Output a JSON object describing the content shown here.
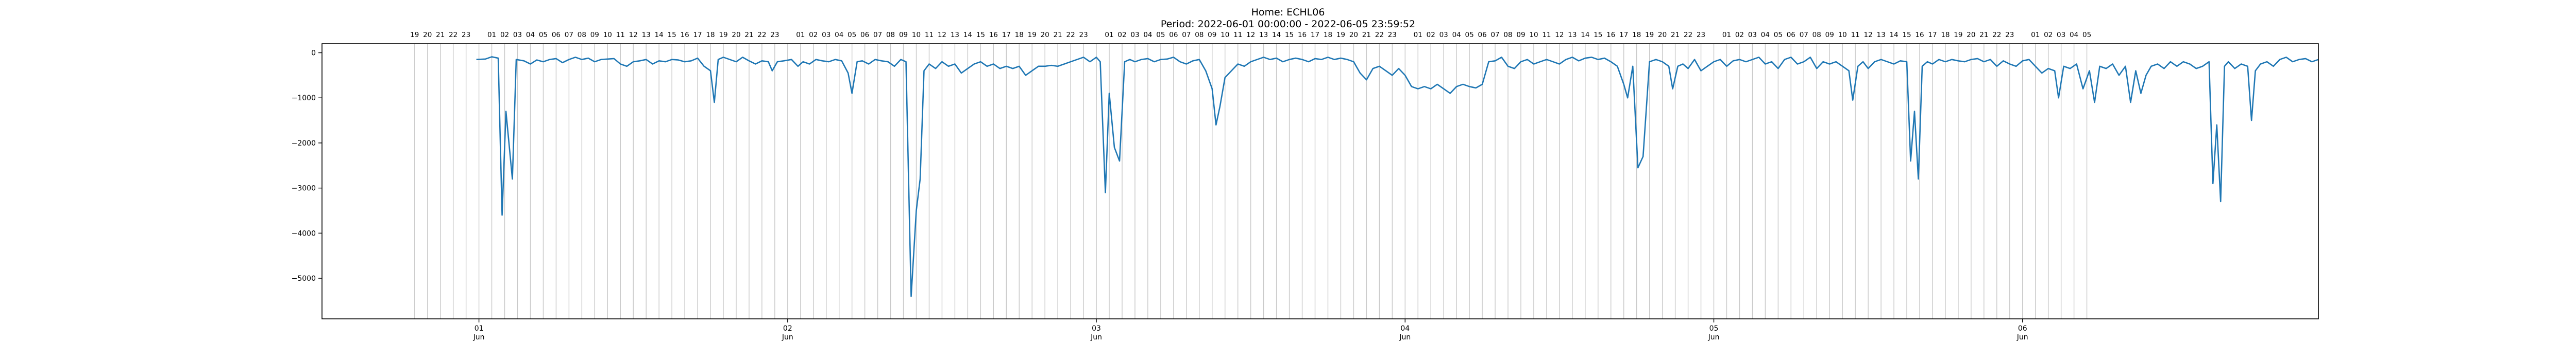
{
  "header": {
    "title_line1": "Home: ECHL06",
    "title_line2": "Period: 2022-06-01 00:00:00 - 2022-06-05 23:59:52"
  },
  "chart_data": {
    "type": "line",
    "title": "Home: ECHL06",
    "subtitle": "Period: 2022-06-01 00:00:00 - 2022-06-05 23:59:52",
    "xlabel": "",
    "ylabel": "",
    "x_range_hours": [
      -12.2,
      143.0
    ],
    "xlim": [
      "2022-05-31T11:48",
      "2022-06-06T23:00"
    ],
    "ylim": [
      -5900,
      200
    ],
    "y_ticks": [
      0,
      -1000,
      -2000,
      -3000,
      -4000,
      -5000
    ],
    "y_tick_labels": [
      "0",
      "−1000",
      "−2000",
      "−3000",
      "−4000",
      "−5000"
    ],
    "date_ticks": [
      {
        "hour": 0,
        "day": "01",
        "month": "Jun"
      },
      {
        "hour": 24,
        "day": "02",
        "month": "Jun"
      },
      {
        "hour": 48,
        "day": "03",
        "month": "Jun"
      },
      {
        "hour": 72,
        "day": "04",
        "month": "Jun"
      },
      {
        "hour": 96,
        "day": "05",
        "month": "Jun"
      },
      {
        "hour": 120,
        "day": "06",
        "month": "Jun"
      }
    ],
    "hour_gridlines": {
      "start_hour": -5,
      "end_hour": 125
    },
    "grid": "vertical hourly lines",
    "series": [
      {
        "color": "#1f77b4",
        "points": [
          [
            -0.2,
            -150
          ],
          [
            0.5,
            -140
          ],
          [
            1.0,
            -90
          ],
          [
            1.5,
            -120
          ],
          [
            1.8,
            -3600
          ],
          [
            2.1,
            -1300
          ],
          [
            2.3,
            -1900
          ],
          [
            2.6,
            -2800
          ],
          [
            2.9,
            -150
          ],
          [
            3.5,
            -180
          ],
          [
            4.0,
            -250
          ],
          [
            4.5,
            -160
          ],
          [
            5.0,
            -200
          ],
          [
            5.5,
            -150
          ],
          [
            6.0,
            -130
          ],
          [
            6.5,
            -220
          ],
          [
            7.0,
            -150
          ],
          [
            7.5,
            -100
          ],
          [
            8.0,
            -150
          ],
          [
            8.5,
            -120
          ],
          [
            9.0,
            -200
          ],
          [
            9.5,
            -150
          ],
          [
            10.0,
            -140
          ],
          [
            10.5,
            -130
          ],
          [
            11.0,
            -250
          ],
          [
            11.5,
            -300
          ],
          [
            12.0,
            -200
          ],
          [
            12.5,
            -180
          ],
          [
            13.0,
            -150
          ],
          [
            13.5,
            -250
          ],
          [
            14.0,
            -180
          ],
          [
            14.5,
            -200
          ],
          [
            15.0,
            -150
          ],
          [
            15.5,
            -160
          ],
          [
            16.0,
            -200
          ],
          [
            16.5,
            -180
          ],
          [
            17.0,
            -120
          ],
          [
            17.5,
            -300
          ],
          [
            18.0,
            -400
          ],
          [
            18.3,
            -1100
          ],
          [
            18.6,
            -150
          ],
          [
            19.0,
            -100
          ],
          [
            19.5,
            -150
          ],
          [
            20.0,
            -200
          ],
          [
            20.5,
            -100
          ],
          [
            21.0,
            -180
          ],
          [
            21.5,
            -250
          ],
          [
            22.0,
            -180
          ],
          [
            22.5,
            -200
          ],
          [
            22.8,
            -400
          ],
          [
            23.2,
            -200
          ],
          [
            23.7,
            -180
          ],
          [
            24.3,
            -150
          ],
          [
            24.8,
            -300
          ],
          [
            25.2,
            -200
          ],
          [
            25.7,
            -250
          ],
          [
            26.2,
            -150
          ],
          [
            26.7,
            -180
          ],
          [
            27.2,
            -200
          ],
          [
            27.7,
            -150
          ],
          [
            28.2,
            -180
          ],
          [
            28.7,
            -450
          ],
          [
            29.0,
            -900
          ],
          [
            29.4,
            -200
          ],
          [
            29.8,
            -180
          ],
          [
            30.3,
            -250
          ],
          [
            30.8,
            -150
          ],
          [
            31.3,
            -180
          ],
          [
            31.8,
            -200
          ],
          [
            32.3,
            -300
          ],
          [
            32.8,
            -150
          ],
          [
            33.2,
            -200
          ],
          [
            33.6,
            -5400
          ],
          [
            34.0,
            -3500
          ],
          [
            34.3,
            -2800
          ],
          [
            34.6,
            -400
          ],
          [
            35.0,
            -250
          ],
          [
            35.5,
            -350
          ],
          [
            36.0,
            -200
          ],
          [
            36.5,
            -300
          ],
          [
            37.0,
            -250
          ],
          [
            37.5,
            -450
          ],
          [
            38.0,
            -350
          ],
          [
            38.5,
            -250
          ],
          [
            39.0,
            -200
          ],
          [
            39.5,
            -300
          ],
          [
            40.0,
            -250
          ],
          [
            40.5,
            -350
          ],
          [
            41.0,
            -300
          ],
          [
            41.5,
            -350
          ],
          [
            42.0,
            -300
          ],
          [
            42.5,
            -500
          ],
          [
            43.0,
            -400
          ],
          [
            43.5,
            -300
          ],
          [
            44.0,
            -300
          ],
          [
            44.5,
            -280
          ],
          [
            45.0,
            -300
          ],
          [
            45.5,
            -250
          ],
          [
            46.0,
            -200
          ],
          [
            46.5,
            -150
          ],
          [
            47.0,
            -100
          ],
          [
            47.5,
            -200
          ],
          [
            48.0,
            -100
          ],
          [
            48.3,
            -200
          ],
          [
            48.7,
            -3100
          ],
          [
            49.0,
            -900
          ],
          [
            49.4,
            -2100
          ],
          [
            49.8,
            -2400
          ],
          [
            50.2,
            -200
          ],
          [
            50.6,
            -150
          ],
          [
            51.0,
            -200
          ],
          [
            51.5,
            -150
          ],
          [
            52.0,
            -130
          ],
          [
            52.5,
            -200
          ],
          [
            53.0,
            -150
          ],
          [
            53.5,
            -140
          ],
          [
            54.0,
            -100
          ],
          [
            54.5,
            -200
          ],
          [
            55.0,
            -250
          ],
          [
            55.5,
            -180
          ],
          [
            56.0,
            -150
          ],
          [
            56.5,
            -400
          ],
          [
            57.0,
            -800
          ],
          [
            57.3,
            -1600
          ],
          [
            57.6,
            -1200
          ],
          [
            58.0,
            -550
          ],
          [
            58.5,
            -400
          ],
          [
            59.0,
            -250
          ],
          [
            59.5,
            -300
          ],
          [
            60.0,
            -200
          ],
          [
            60.5,
            -150
          ],
          [
            61.0,
            -100
          ],
          [
            61.5,
            -150
          ],
          [
            62.0,
            -120
          ],
          [
            62.5,
            -200
          ],
          [
            63.0,
            -150
          ],
          [
            63.5,
            -120
          ],
          [
            64.0,
            -150
          ],
          [
            64.5,
            -200
          ],
          [
            65.0,
            -130
          ],
          [
            65.5,
            -150
          ],
          [
            66.0,
            -100
          ],
          [
            66.5,
            -150
          ],
          [
            67.0,
            -120
          ],
          [
            67.5,
            -150
          ],
          [
            68.0,
            -200
          ],
          [
            68.5,
            -450
          ],
          [
            69.0,
            -600
          ],
          [
            69.5,
            -350
          ],
          [
            70.0,
            -300
          ],
          [
            70.5,
            -400
          ],
          [
            71.0,
            -500
          ],
          [
            71.5,
            -350
          ],
          [
            72.0,
            -500
          ],
          [
            72.5,
            -750
          ],
          [
            73.0,
            -800
          ],
          [
            73.5,
            -750
          ],
          [
            74.0,
            -800
          ],
          [
            74.5,
            -700
          ],
          [
            75.0,
            -800
          ],
          [
            75.5,
            -900
          ],
          [
            76.0,
            -750
          ],
          [
            76.5,
            -700
          ],
          [
            77.0,
            -750
          ],
          [
            77.5,
            -780
          ],
          [
            78.0,
            -700
          ],
          [
            78.5,
            -200
          ],
          [
            79.0,
            -180
          ],
          [
            79.5,
            -100
          ],
          [
            80.0,
            -300
          ],
          [
            80.5,
            -350
          ],
          [
            81.0,
            -200
          ],
          [
            81.5,
            -150
          ],
          [
            82.0,
            -250
          ],
          [
            82.5,
            -200
          ],
          [
            83.0,
            -150
          ],
          [
            83.5,
            -200
          ],
          [
            84.0,
            -250
          ],
          [
            84.5,
            -150
          ],
          [
            85.0,
            -100
          ],
          [
            85.5,
            -180
          ],
          [
            86.0,
            -120
          ],
          [
            86.5,
            -100
          ],
          [
            87.0,
            -150
          ],
          [
            87.5,
            -120
          ],
          [
            88.0,
            -200
          ],
          [
            88.5,
            -300
          ],
          [
            89.0,
            -700
          ],
          [
            89.3,
            -1000
          ],
          [
            89.7,
            -300
          ],
          [
            90.1,
            -2550
          ],
          [
            90.5,
            -2300
          ],
          [
            91.0,
            -200
          ],
          [
            91.5,
            -150
          ],
          [
            92.0,
            -200
          ],
          [
            92.5,
            -300
          ],
          [
            92.8,
            -800
          ],
          [
            93.2,
            -300
          ],
          [
            93.6,
            -250
          ],
          [
            94.0,
            -350
          ],
          [
            94.5,
            -150
          ],
          [
            95.0,
            -400
          ],
          [
            95.5,
            -300
          ],
          [
            96.0,
            -200
          ],
          [
            96.5,
            -150
          ],
          [
            97.0,
            -300
          ],
          [
            97.5,
            -180
          ],
          [
            98.0,
            -150
          ],
          [
            98.5,
            -200
          ],
          [
            99.0,
            -150
          ],
          [
            99.5,
            -100
          ],
          [
            100.0,
            -250
          ],
          [
            100.5,
            -200
          ],
          [
            101.0,
            -350
          ],
          [
            101.5,
            -150
          ],
          [
            102.0,
            -100
          ],
          [
            102.5,
            -250
          ],
          [
            103.0,
            -200
          ],
          [
            103.5,
            -100
          ],
          [
            104.0,
            -350
          ],
          [
            104.5,
            -200
          ],
          [
            105.0,
            -250
          ],
          [
            105.5,
            -200
          ],
          [
            106.0,
            -300
          ],
          [
            106.5,
            -400
          ],
          [
            106.8,
            -1050
          ],
          [
            107.2,
            -300
          ],
          [
            107.6,
            -200
          ],
          [
            108.0,
            -350
          ],
          [
            108.5,
            -200
          ],
          [
            109.0,
            -150
          ],
          [
            109.5,
            -200
          ],
          [
            110.0,
            -250
          ],
          [
            110.5,
            -180
          ],
          [
            111.0,
            -200
          ],
          [
            111.3,
            -2400
          ],
          [
            111.6,
            -1300
          ],
          [
            111.9,
            -2800
          ],
          [
            112.2,
            -300
          ],
          [
            112.6,
            -200
          ],
          [
            113.0,
            -250
          ],
          [
            113.5,
            -150
          ],
          [
            114.0,
            -200
          ],
          [
            114.5,
            -150
          ],
          [
            115.0,
            -180
          ],
          [
            115.5,
            -200
          ],
          [
            116.0,
            -150
          ],
          [
            116.5,
            -130
          ],
          [
            117.0,
            -200
          ],
          [
            117.5,
            -150
          ],
          [
            118.0,
            -300
          ],
          [
            118.5,
            -180
          ],
          [
            119.0,
            -250
          ],
          [
            119.5,
            -300
          ],
          [
            120.0,
            -180
          ],
          [
            120.5,
            -150
          ],
          [
            121.0,
            -300
          ],
          [
            121.5,
            -450
          ],
          [
            122.0,
            -350
          ],
          [
            122.5,
            -400
          ],
          [
            122.8,
            -1000
          ],
          [
            123.2,
            -300
          ],
          [
            123.7,
            -350
          ],
          [
            124.2,
            -250
          ],
          [
            124.7,
            -800
          ],
          [
            125.2,
            -400
          ],
          [
            125.6,
            -1100
          ],
          [
            126.0,
            -300
          ],
          [
            126.5,
            -350
          ],
          [
            127.0,
            -250
          ],
          [
            127.5,
            -500
          ],
          [
            128.0,
            -300
          ],
          [
            128.4,
            -1100
          ],
          [
            128.8,
            -400
          ],
          [
            129.2,
            -900
          ],
          [
            129.6,
            -500
          ],
          [
            130.0,
            -300
          ],
          [
            130.5,
            -250
          ],
          [
            131.0,
            -350
          ],
          [
            131.5,
            -200
          ],
          [
            132.0,
            -300
          ],
          [
            132.5,
            -200
          ],
          [
            133.0,
            -250
          ],
          [
            133.5,
            -350
          ],
          [
            134.0,
            -300
          ],
          [
            134.5,
            -200
          ],
          [
            134.8,
            -2900
          ],
          [
            135.1,
            -1600
          ],
          [
            135.4,
            -3300
          ],
          [
            135.7,
            -300
          ],
          [
            136.0,
            -200
          ],
          [
            136.5,
            -350
          ],
          [
            137.0,
            -250
          ],
          [
            137.5,
            -300
          ],
          [
            137.8,
            -1500
          ],
          [
            138.1,
            -400
          ],
          [
            138.5,
            -250
          ],
          [
            139.0,
            -200
          ],
          [
            139.5,
            -300
          ],
          [
            140.0,
            -150
          ],
          [
            140.5,
            -100
          ],
          [
            141.0,
            -200
          ],
          [
            141.5,
            -150
          ],
          [
            142.0,
            -130
          ],
          [
            142.5,
            -200
          ],
          [
            143.0,
            -150
          ]
        ]
      }
    ]
  }
}
